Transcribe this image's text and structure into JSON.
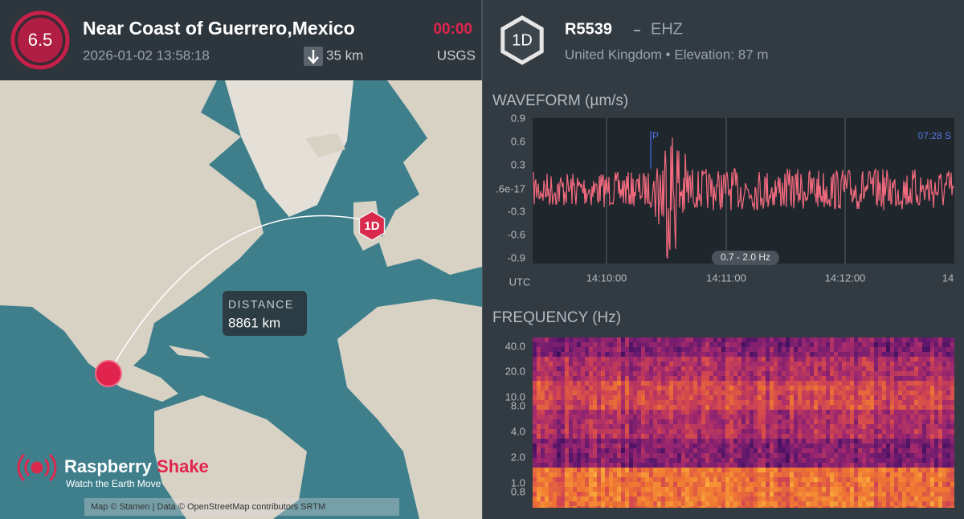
{
  "event": {
    "magnitude": "6.5",
    "title": "Near Coast of Guerrero,Mexico",
    "datetime": "2026-01-02 13:58:18",
    "depth": "35 km",
    "elapsed": "00:00",
    "source": "USGS"
  },
  "station": {
    "badge": "1D",
    "id": "R5539",
    "channel": "EHZ",
    "details": "United Kingdom • Elevation: 87 m"
  },
  "map": {
    "station_badge": "1D",
    "distance_label": "DISTANCE",
    "distance_value": "8861 km",
    "logo": {
      "name": "Raspberry",
      "name_accent": "Shake",
      "tagline": "Watch the Earth Move"
    },
    "attribution": "Map © Stamen | Data © OpenStreetMap contributors SRTM"
  },
  "waveform": {
    "title": "WAVEFORM (µm/s)",
    "y_labels": [
      "0.9",
      "0.6",
      "0.3",
      ".6e-17",
      "-0.3",
      "-0.6",
      "-0.9"
    ],
    "x_unit": "UTC",
    "x_labels": [
      "14:10:00",
      "14:11:00",
      "14:12:00",
      "14"
    ],
    "p_marker": "P",
    "s_marker": "07:28  S",
    "band": "0.7 - 2.0 Hz"
  },
  "frequency": {
    "title": "FREQUENCY (Hz)",
    "y_labels": [
      "40.0",
      "20.0",
      "10.0",
      "8.0",
      "4.0",
      "2.0",
      "1.0",
      "0.8"
    ]
  }
}
